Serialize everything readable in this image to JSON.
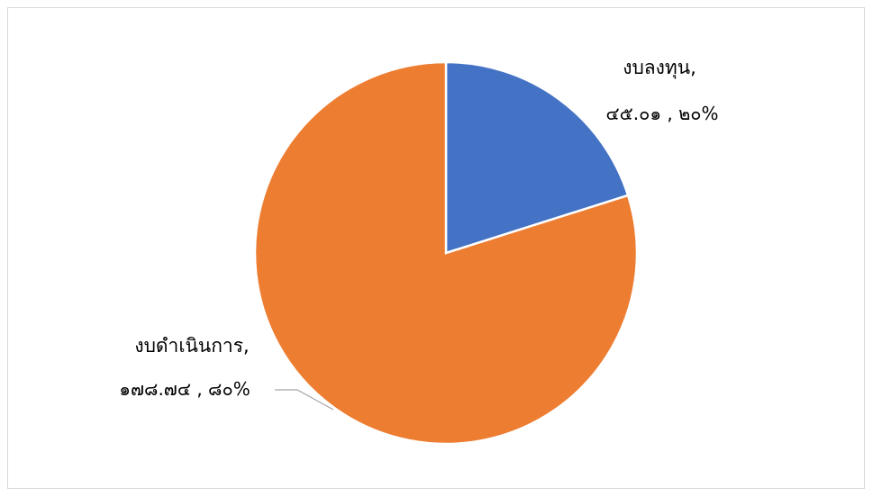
{
  "chart_data": {
    "type": "pie",
    "title": "",
    "categories": [
      "งบลงทุน",
      "งบดำเนินการ"
    ],
    "values": [
      45.01,
      178.74
    ],
    "value_labels": [
      "๔๕.๐๑",
      "๑๗๘.๗๔"
    ],
    "percent_labels": [
      "๒๐%",
      "๘๐%"
    ],
    "colors": [
      "#4472c4",
      "#ed7d31"
    ],
    "legend": "none",
    "start_angle_deg": 0,
    "direction": "clockwise"
  },
  "labels": [
    {
      "line1": "งบลงทุน,",
      "line2": "๔๕.๐๑ , ๒๐%"
    },
    {
      "line1": "งบดำเนินการ,",
      "line2": "๑๗๘.๗๔ , ๘๐%"
    }
  ]
}
